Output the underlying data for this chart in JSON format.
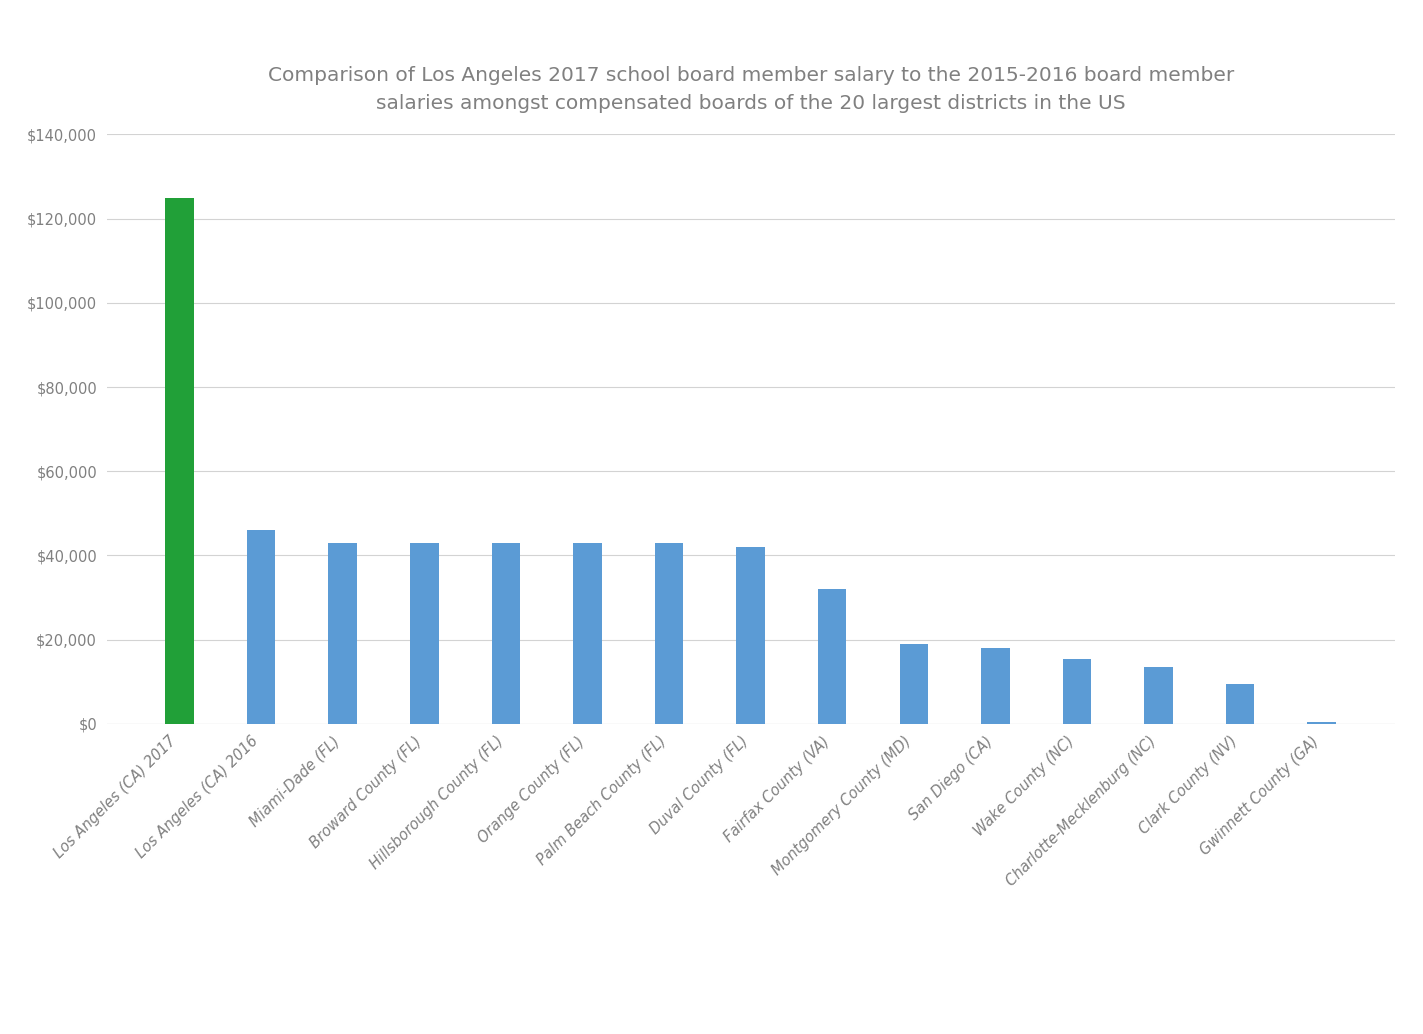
{
  "categories": [
    "Los Angeles (CA) 2017",
    "Los Angeles (CA) 2016",
    "Miami-Dade (FL)",
    "Broward County (FL)",
    "Hillsborough County (FL)",
    "Orange County (FL)",
    "Palm Beach County (FL)",
    "Duval County (FL)",
    "Fairfax County (VA)",
    "Montgomery County (MD)",
    "San Diego (CA)",
    "Wake County (NC)",
    "Charlotte-Mecklenburg (NC)",
    "Clark County (NV)",
    "Gwinnett County (GA)"
  ],
  "values": [
    125000,
    46000,
    43000,
    43000,
    43000,
    43000,
    43000,
    42000,
    32000,
    19000,
    18000,
    15500,
    13500,
    9500,
    500
  ],
  "bar_colors": [
    "#21a038",
    "#5b9bd5",
    "#5b9bd5",
    "#5b9bd5",
    "#5b9bd5",
    "#5b9bd5",
    "#5b9bd5",
    "#5b9bd5",
    "#5b9bd5",
    "#5b9bd5",
    "#5b9bd5",
    "#5b9bd5",
    "#5b9bd5",
    "#5b9bd5",
    "#5b9bd5"
  ],
  "title_line1": "Comparison of Los Angeles 2017 school board member salary to the 2015-2016 board member",
  "title_line2": "salaries amongst compensated boards of the 20 largest districts in the US",
  "ylim": [
    0,
    140000
  ],
  "yticks": [
    0,
    20000,
    40000,
    60000,
    80000,
    100000,
    120000,
    140000
  ],
  "background_color": "#ffffff",
  "grid_color": "#d3d3d3",
  "title_color": "#808080",
  "tick_label_color": "#808080",
  "title_fontsize": 14.5,
  "tick_fontsize": 10.5,
  "bar_width": 0.35
}
